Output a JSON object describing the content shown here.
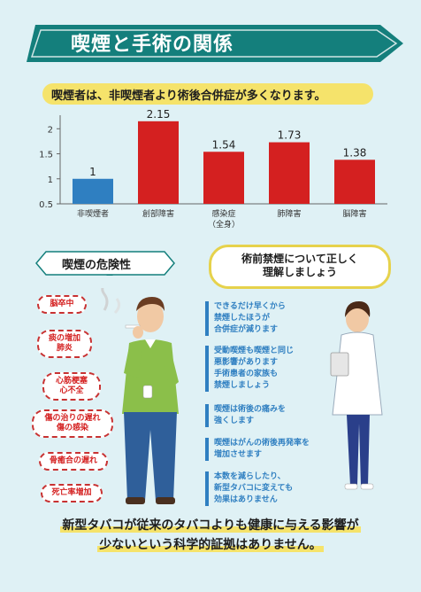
{
  "title": "喫煙と手術の関係",
  "subtitle": "喫煙者は、非喫煙者より術後合併症が多くなります。",
  "colors": {
    "title_bar": "#147f7c",
    "baseline_bar": "#2f7fc1",
    "risk_bar": "#d42020",
    "accent_yellow": "#f5e36b",
    "info_blue": "#2f7fc1"
  },
  "chart_data": {
    "type": "bar",
    "categories": [
      "非喫煙者",
      "創部障害",
      "感染症",
      "肺障害",
      "脳障害"
    ],
    "category_sublabels": [
      "",
      "",
      "（全身）",
      "",
      ""
    ],
    "values": [
      1,
      2.15,
      1.54,
      1.73,
      1.38
    ],
    "value_labels": [
      "1",
      "2.15",
      "1.54",
      "1.73",
      "1.38"
    ],
    "y_ticks": [
      "0.5",
      "1",
      "1.5",
      "2"
    ],
    "ylim": [
      0.5,
      2.2
    ],
    "grid": false
  },
  "danger": {
    "heading": "喫煙の危険性",
    "items": [
      {
        "lines": [
          "脳卒中"
        ]
      },
      {
        "lines": [
          "痰の増加",
          "肺炎"
        ]
      },
      {
        "lines": [
          "心筋梗塞",
          "心不全"
        ]
      },
      {
        "lines": [
          "傷の治りの遅れ",
          "傷の感染"
        ]
      },
      {
        "lines": [
          "骨癒合の遅れ"
        ]
      },
      {
        "lines": [
          "死亡率増加"
        ]
      }
    ]
  },
  "quit": {
    "heading_line1": "術前禁煙について正しく",
    "heading_line2": "理解しましょう",
    "items": [
      {
        "lines": [
          "できるだけ早くから",
          "禁煙したほうが",
          "合併症が減ります"
        ]
      },
      {
        "lines": [
          "受動喫煙も喫煙と同じ",
          "悪影響があります",
          "手術患者の家族も",
          "禁煙しましょう"
        ]
      },
      {
        "lines": [
          "喫煙は術後の痛みを",
          "強くします"
        ]
      },
      {
        "lines": [
          "喫煙はがんの術後再発率を",
          "増加させます"
        ]
      },
      {
        "lines": [
          "本数を減らしたり、",
          "新型タバコに変えても",
          "効果はありません"
        ]
      }
    ]
  },
  "bottom": {
    "line1": "新型タバコが従来のタバコよりも健康に与える影響が",
    "line2": "少ないという科学的証拠はありません。"
  }
}
